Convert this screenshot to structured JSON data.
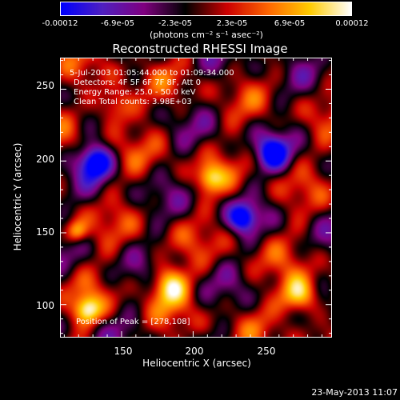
{
  "colorbar": {
    "tick_labels": [
      "-0.00012",
      "-6.9e-05",
      "-2.3e-05",
      "2.3e-05",
      "6.9e-05",
      "0.00012"
    ],
    "unit": "(photons cm⁻² s⁻¹ asec⁻²)",
    "colors": [
      "#0000ff",
      "#5020c0",
      "#800080",
      "#000000",
      "#cc0000",
      "#ff6600",
      "#ffcc00",
      "#ffffff"
    ]
  },
  "chart_data": {
    "type": "heatmap",
    "title": "Reconstructed RHESSI Image",
    "xlabel": "Heliocentric X (arcsec)",
    "ylabel": "Heliocentric Y (arcsec)",
    "xlim": [
      107,
      297
    ],
    "ylim": [
      77,
      272
    ],
    "x_ticks": [
      "150",
      "200",
      "250"
    ],
    "x_tick_values": [
      150,
      200,
      250
    ],
    "y_ticks": [
      "100",
      "150",
      "200",
      "250"
    ],
    "y_tick_values": [
      100,
      150,
      200,
      250
    ],
    "annotations": [
      "5-Jul-2003 01:05:44.000 to 01:09:34.000",
      "Detectors: 4F 5F 6F 7F 8F, Att 0",
      "Energy Range: 25.0 - 50.0 keV",
      "Clean     Total counts: 3.98E+03"
    ],
    "peak_label": "Position of Peak = [278,108]",
    "peak_position": [
      278,
      108
    ]
  },
  "timestamp": "23-May-2013 11:07"
}
